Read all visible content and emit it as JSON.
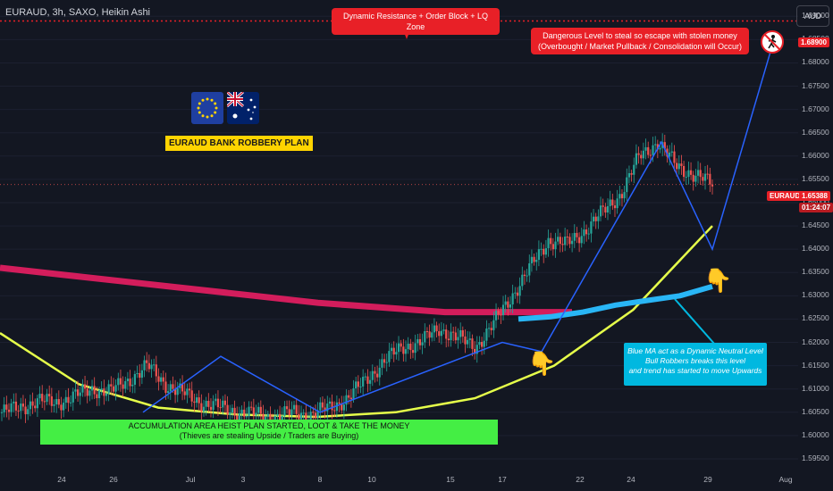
{
  "header": {
    "title": "EURAUD, 3h, SAXO, Heikin Ashi"
  },
  "currency_button": "AUD",
  "price_axis": {
    "ticks": [
      "1.69000",
      "1.68500",
      "1.68000",
      "1.67500",
      "1.67000",
      "1.66500",
      "1.66000",
      "1.65500",
      "1.65000",
      "1.64500",
      "1.64000",
      "1.63500",
      "1.63000",
      "1.62500",
      "1.62000",
      "1.61500",
      "1.61000",
      "1.60500",
      "1.60000",
      "1.59500"
    ],
    "level_tag": "1.68900",
    "symbol_tag": "EURAUD",
    "last_price": "1.65388",
    "countdown": "01:24:07"
  },
  "time_axis": {
    "labels": [
      "24",
      "26",
      "Jul",
      "3",
      "8",
      "10",
      "15",
      "17",
      "22",
      "24",
      "29",
      "Aug"
    ]
  },
  "annotations": {
    "top_callout": "Dynamic Resistance + Order Block + LQ Zone",
    "danger_line1": "Dangerous Level to steal so escape with stolen money",
    "danger_line2": "(Overbought / Market Pullback / Consolidation will Occur)",
    "plan_title": "EURAUD BANK ROBBERY PLAN",
    "accum_line1": "ACCUMULATION AREA HEIST PLAN STARTED, LOOT & TAKE THE MONEY",
    "accum_line2": "(Thieves are stealing Upside / Traders are Buying)",
    "blue_line1": "Blue MA act as a Dynamic Neutral Level",
    "blue_line2": "Bull Robbers breaks this level",
    "blue_line3": "and trend has started to move Upwards"
  },
  "colors": {
    "bull": "#26a69a",
    "bear": "#ef5350",
    "pink_ma": "#e91e63",
    "yellow_ma": "#e6ff4a",
    "blue_ma": "#29b6f6",
    "path": "#2962ff"
  },
  "chart_data": {
    "type": "candlestick",
    "title": "EURAUD, 3h, SAXO, Heikin Ashi",
    "ylim": [
      1.5925,
      1.6935
    ],
    "resistance_level": 1.689,
    "last_price": 1.65388,
    "x_labels": [
      "24",
      "26",
      "Jul",
      "3",
      "8",
      "10",
      "15",
      "17",
      "22",
      "24",
      "29",
      "Aug"
    ],
    "price_path": [
      1.605,
      1.606,
      1.6075,
      1.607,
      1.6085,
      1.61,
      1.6095,
      1.612,
      1.615,
      1.611,
      1.609,
      1.607,
      1.606,
      1.605,
      1.6045,
      1.604,
      1.605,
      1.6045,
      1.606,
      1.608,
      1.612,
      1.616,
      1.619,
      1.62,
      1.623,
      1.621,
      1.619,
      1.624,
      1.63,
      1.636,
      1.642,
      1.641,
      1.644,
      1.648,
      1.652,
      1.66,
      1.663,
      1.658,
      1.656,
      1.654
    ],
    "moving_averages": [
      {
        "name": "pink",
        "values": [
          1.636,
          1.6345,
          1.633,
          1.6315,
          1.63,
          1.6285,
          1.6275,
          1.6265,
          1.6265,
          1.6265
        ]
      },
      {
        "name": "yellow",
        "values": [
          1.622,
          1.611,
          1.606,
          1.6045,
          1.604,
          1.605,
          1.608,
          1.615,
          1.627,
          1.645
        ]
      },
      {
        "name": "blue",
        "values": [
          1.625,
          1.6255,
          1.6265,
          1.628,
          1.629,
          1.63,
          1.632
        ]
      }
    ],
    "projection_path": [
      1.605,
      1.617,
      1.605,
      1.62,
      1.618,
      1.663,
      1.64,
      1.685
    ]
  }
}
